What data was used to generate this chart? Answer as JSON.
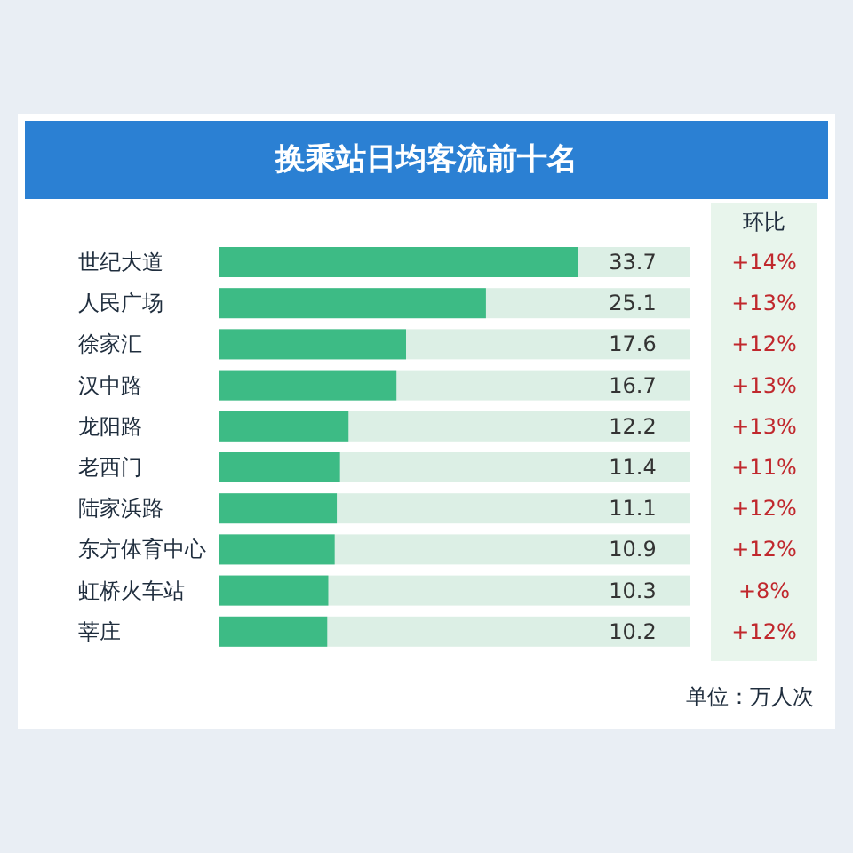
{
  "chart_data": {
    "type": "bar",
    "orientation": "horizontal",
    "title": "换乘站日均客流前十名",
    "categories": [
      "世纪大道",
      "人民广场",
      "徐家汇",
      "汉中路",
      "龙阳路",
      "老西门",
      "陆家浜路",
      "东方体育中心",
      "虹桥火车站",
      "莘庄"
    ],
    "values": [
      33.7,
      25.1,
      17.6,
      16.7,
      12.2,
      11.4,
      11.1,
      10.9,
      10.3,
      10.2
    ],
    "color": "#3dbb85",
    "data_labels": true,
    "annotations": [
      "环比",
      "+14%",
      "+13%",
      "+12%",
      "+13%",
      "+13%",
      "+11%",
      "+12%",
      "+12%",
      "+8%",
      "+12%",
      "单位：万人次"
    ]
  }
}
